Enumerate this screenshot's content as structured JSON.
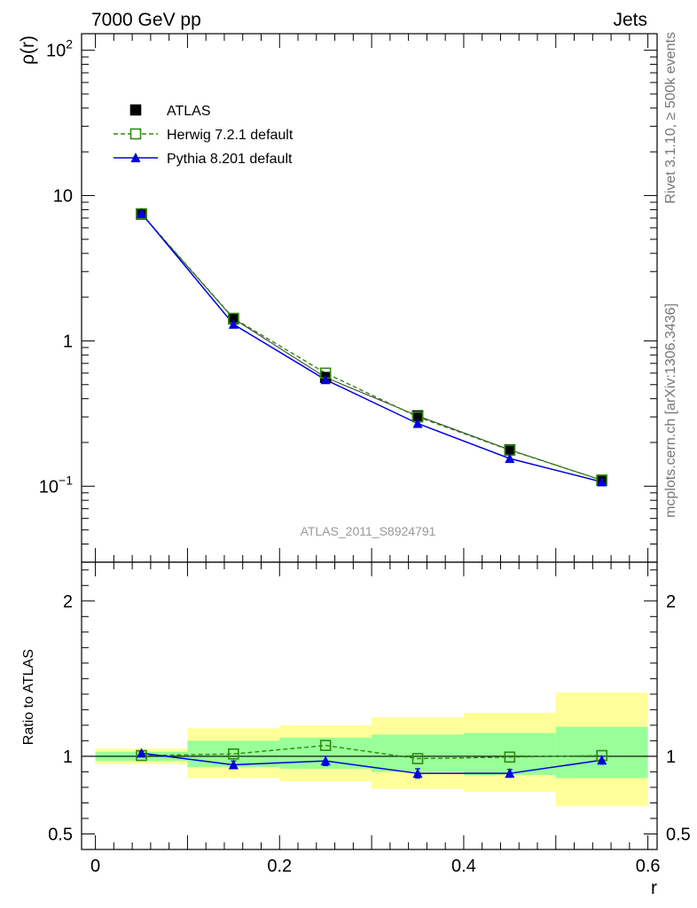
{
  "header": {
    "left": "7000 GeV pp",
    "right": "Jets"
  },
  "side_labels": {
    "rivet": "Rivet 3.1.10, ≥ 500k events",
    "mcplots": "mcplots.cern.ch [arXiv:1306.3436]"
  },
  "watermark": "ATLAS_2011_S8924791",
  "chart_data": [
    {
      "type": "line",
      "panel": "main",
      "ylabel": "ρ(r)",
      "yscale": "log",
      "ylim": [
        0.03,
        130
      ],
      "xlim": [
        -0.015,
        0.61
      ],
      "y_tick_labels": [
        {
          "value": 100,
          "label": "10",
          "exp": "2"
        },
        {
          "value": 10,
          "label": "10",
          "exp": ""
        },
        {
          "value": 1,
          "label": "1",
          "exp": ""
        },
        {
          "value": 0.1,
          "label": "10",
          "exp": "−1"
        }
      ],
      "legend": [
        {
          "name": "ATLAS",
          "marker": "square-filled"
        },
        {
          "name": "Herwig 7.2.1 default",
          "marker": "square-open"
        },
        {
          "name": "Pythia 8.201 default",
          "marker": "triangle"
        }
      ],
      "x": [
        0.05,
        0.15,
        0.25,
        0.35,
        0.45,
        0.55
      ],
      "series": [
        {
          "name": "ATLAS",
          "values": [
            7.45,
            1.42,
            0.56,
            0.305,
            0.178,
            0.11
          ],
          "color": "#000000"
        },
        {
          "name": "Herwig 7.2.1 default",
          "values": [
            7.5,
            1.43,
            0.6,
            0.3,
            0.177,
            0.11
          ],
          "color": "#2f8a0e"
        },
        {
          "name": "Pythia 8.201 default",
          "values": [
            7.55,
            1.3,
            0.54,
            0.27,
            0.155,
            0.107
          ],
          "color": "#0000dd"
        }
      ]
    },
    {
      "type": "line",
      "panel": "ratio",
      "ylabel": "Ratio to ATLAS",
      "xlabel": "r",
      "ylim": [
        0.4,
        2.25
      ],
      "xlim": [
        -0.015,
        0.61
      ],
      "y_tick_labels": [
        {
          "value": 2,
          "label": "2"
        },
        {
          "value": 1,
          "label": "1"
        },
        {
          "value": 0.5,
          "label": "0.5"
        }
      ],
      "x_tick_labels": [
        {
          "value": 0,
          "label": "0"
        },
        {
          "value": 0.2,
          "label": "0.2"
        },
        {
          "value": 0.4,
          "label": "0.4"
        },
        {
          "value": 0.6,
          "label": "0.6"
        }
      ],
      "bands": [
        {
          "x0": 0.0,
          "x1": 0.1,
          "green": [
            0.97,
            1.03
          ],
          "yellow": [
            0.95,
            1.05
          ]
        },
        {
          "x0": 0.1,
          "x1": 0.2,
          "green": [
            0.93,
            1.1
          ],
          "yellow": [
            0.86,
            1.18
          ]
        },
        {
          "x0": 0.2,
          "x1": 0.3,
          "green": [
            0.92,
            1.12
          ],
          "yellow": [
            0.84,
            1.2
          ]
        },
        {
          "x0": 0.3,
          "x1": 0.4,
          "green": [
            0.9,
            1.14
          ],
          "yellow": [
            0.79,
            1.25
          ]
        },
        {
          "x0": 0.4,
          "x1": 0.5,
          "green": [
            0.88,
            1.15
          ],
          "yellow": [
            0.77,
            1.28
          ]
        },
        {
          "x0": 0.5,
          "x1": 0.6,
          "green": [
            0.86,
            1.19
          ],
          "yellow": [
            0.68,
            1.41
          ]
        }
      ],
      "x": [
        0.05,
        0.15,
        0.25,
        0.35,
        0.45,
        0.55
      ],
      "series": [
        {
          "name": "Herwig 7.2.1 default",
          "values": [
            1.005,
            1.015,
            1.07,
            0.985,
            0.995,
            1.005
          ],
          "color": "#2f8a0e"
        },
        {
          "name": "Pythia 8.201 default",
          "values": [
            1.02,
            0.945,
            0.97,
            0.89,
            0.89,
            0.975
          ],
          "errors": [
            0.01,
            0.025,
            0.03,
            0.03,
            0.025,
            0.025
          ],
          "color": "#0000dd"
        }
      ]
    }
  ]
}
